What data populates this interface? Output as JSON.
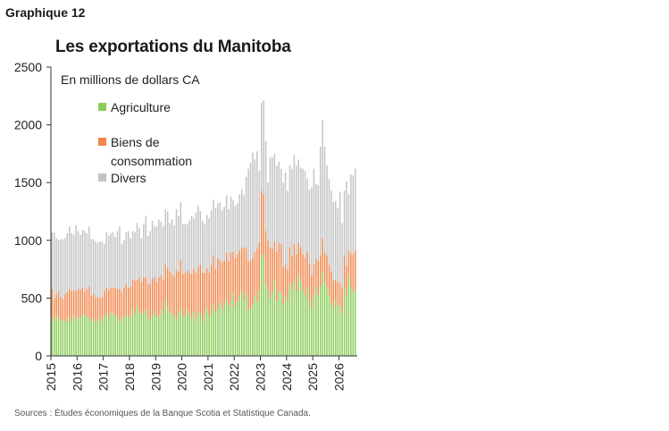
{
  "header": {
    "chart_number": "Graphique 12",
    "title": "Les exportations du Manitoba"
  },
  "footer": {
    "source": "Sources : Études économiques de la Banque Scotia et Statistique Canada."
  },
  "colors": {
    "agriculture": "#8dcc5b",
    "biens": "#f0874b",
    "divers": "#c4c4c4"
  },
  "chart_data": {
    "type": "bar",
    "stacked": true,
    "unit_label": "En millions de dollars CA",
    "start": "2015-01",
    "frequency": "monthly",
    "ylim": [
      0,
      2500
    ],
    "yticks": [
      0,
      500,
      1000,
      1500,
      2000,
      2500
    ],
    "xticks": [
      "2015",
      "2016",
      "2017",
      "2018",
      "2019",
      "2020",
      "2021",
      "2022",
      "2023",
      "2024",
      "2025",
      "2026"
    ],
    "legend_position": "top-left",
    "grid": false,
    "series": [
      {
        "name": "Agriculture",
        "color": "#8dcc5b",
        "values": [
          330,
          300,
          350,
          320,
          300,
          310,
          290,
          320,
          330,
          300,
          350,
          320,
          330,
          340,
          350,
          360,
          330,
          340,
          300,
          320,
          290,
          310,
          320,
          300,
          350,
          360,
          330,
          380,
          370,
          340,
          350,
          300,
          320,
          340,
          350,
          330,
          350,
          400,
          360,
          430,
          380,
          360,
          380,
          400,
          350,
          310,
          350,
          390,
          330,
          350,
          400,
          360,
          480,
          420,
          380,
          360,
          350,
          320,
          380,
          420,
          340,
          360,
          400,
          360,
          330,
          380,
          320,
          380,
          360,
          300,
          370,
          420,
          340,
          390,
          440,
          370,
          410,
          460,
          400,
          450,
          490,
          430,
          470,
          550,
          420,
          470,
          520,
          560,
          480,
          540,
          400,
          410,
          450,
          520,
          470,
          560,
          880,
          850,
          620,
          570,
          500,
          550,
          650,
          470,
          560,
          550,
          440,
          520,
          480,
          620,
          580,
          640,
          550,
          700,
          640,
          570,
          520,
          600,
          480,
          410,
          530,
          600,
          520,
          600,
          720,
          630,
          590,
          520,
          460,
          420,
          480,
          440,
          430,
          370,
          590,
          520,
          700,
          600,
          550,
          580
        ]
      },
      {
        "name": "Biens de consommation",
        "color": "#f0874b",
        "values": [
          250,
          200,
          180,
          240,
          210,
          180,
          240,
          230,
          250,
          260,
          220,
          240,
          250,
          230,
          240,
          190,
          250,
          260,
          220,
          220,
          220,
          200,
          180,
          210,
          210,
          230,
          240,
          210,
          220,
          250,
          230,
          280,
          230,
          250,
          270,
          260,
          250,
          260,
          290,
          230,
          300,
          280,
          300,
          280,
          270,
          320,
          320,
          290,
          310,
          330,
          300,
          300,
          310,
          340,
          350,
          350,
          340,
          420,
          350,
          410,
          370,
          360,
          340,
          360,
          380,
          370,
          400,
          390,
          430,
          420,
          350,
          340,
          380,
          400,
          430,
          380,
          430,
          370,
          410,
          370,
          400,
          390,
          430,
          350,
          430,
          410,
          390,
          380,
          450,
          400,
          420,
          420,
          400,
          380,
          460,
          420,
          550,
          550,
          460,
          430,
          440,
          380,
          340,
          430,
          420,
          420,
          330,
          270,
          270,
          320,
          280,
          330,
          330,
          280,
          300,
          310,
          330,
          300,
          320,
          290,
          260,
          240,
          300,
          270,
          300,
          260,
          280,
          270,
          270,
          230,
          180,
          200,
          200,
          220,
          280,
          260,
          210,
          280,
          330,
          330
        ]
      },
      {
        "name": "Divers",
        "color": "#c4c4c4",
        "values": [
          490,
          570,
          490,
          440,
          500,
          520,
          490,
          510,
          540,
          500,
          480,
          570,
          500,
          480,
          500,
          530,
          480,
          520,
          490,
          470,
          480,
          470,
          490,
          480,
          410,
          480,
          470,
          470,
          480,
          440,
          500,
          540,
          420,
          410,
          450,
          490,
          420,
          420,
          420,
          490,
          430,
          380,
          460,
          530,
          420,
          450,
          500,
          440,
          480,
          500,
          460,
          460,
          480,
          490,
          420,
          470,
          440,
          530,
          480,
          500,
          430,
          420,
          400,
          450,
          500,
          440,
          520,
          530,
          460,
          450,
          420,
          460,
          470,
          470,
          480,
          530,
          480,
          500,
          450,
          470,
          500,
          450,
          480,
          450,
          450,
          440,
          490,
          500,
          460,
          610,
          800,
          840,
          910,
          800,
          840,
          620,
          760,
          810,
          780,
          500,
          780,
          790,
          760,
          750,
          700,
          650,
          730,
          800,
          680,
          710,
          760,
          770,
          770,
          720,
          690,
          740,
          750,
          630,
          640,
          760,
          830,
          650,
          660,
          940,
          1020,
          920,
          780,
          740,
          700,
          680,
          680,
          640,
          790,
          560,
          560,
          730,
          490,
          690,
          680,
          710
        ]
      }
    ]
  }
}
